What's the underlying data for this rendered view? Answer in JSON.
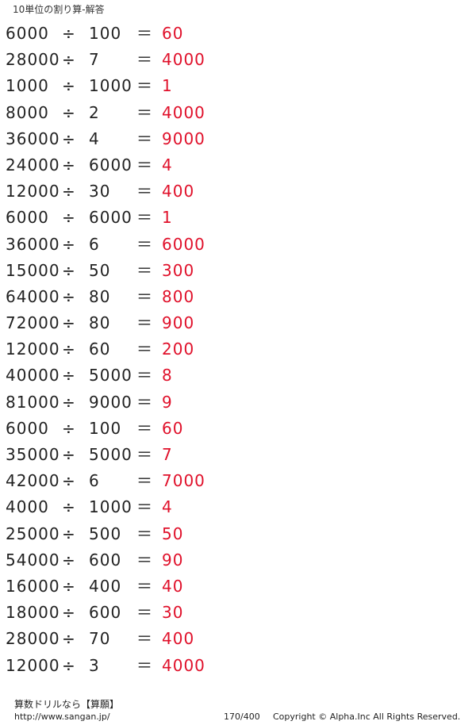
{
  "header": {
    "title": "10単位の割り算-解答"
  },
  "operator_symbol": "÷",
  "equals_symbol": "＝",
  "colors": {
    "answer": "#e0102a",
    "text": "#222222"
  },
  "problems": [
    {
      "dividend": "6000",
      "divisor": "100",
      "answer": "60"
    },
    {
      "dividend": "28000",
      "divisor": "7",
      "answer": "4000"
    },
    {
      "dividend": "1000",
      "divisor": "1000",
      "answer": "1"
    },
    {
      "dividend": "8000",
      "divisor": "2",
      "answer": "4000"
    },
    {
      "dividend": "36000",
      "divisor": "4",
      "answer": "9000"
    },
    {
      "dividend": "24000",
      "divisor": "6000",
      "answer": "4"
    },
    {
      "dividend": "12000",
      "divisor": "30",
      "answer": "400"
    },
    {
      "dividend": "6000",
      "divisor": "6000",
      "answer": "1"
    },
    {
      "dividend": "36000",
      "divisor": "6",
      "answer": "6000"
    },
    {
      "dividend": "15000",
      "divisor": "50",
      "answer": "300"
    },
    {
      "dividend": "64000",
      "divisor": "80",
      "answer": "800"
    },
    {
      "dividend": "72000",
      "divisor": "80",
      "answer": "900"
    },
    {
      "dividend": "12000",
      "divisor": "60",
      "answer": "200"
    },
    {
      "dividend": "40000",
      "divisor": "5000",
      "answer": "8"
    },
    {
      "dividend": "81000",
      "divisor": "9000",
      "answer": "9"
    },
    {
      "dividend": "6000",
      "divisor": "100",
      "answer": "60"
    },
    {
      "dividend": "35000",
      "divisor": "5000",
      "answer": "7"
    },
    {
      "dividend": "42000",
      "divisor": "6",
      "answer": "7000"
    },
    {
      "dividend": "4000",
      "divisor": "1000",
      "answer": "4"
    },
    {
      "dividend": "25000",
      "divisor": "500",
      "answer": "50"
    },
    {
      "dividend": "54000",
      "divisor": "600",
      "answer": "90"
    },
    {
      "dividend": "16000",
      "divisor": "400",
      "answer": "40"
    },
    {
      "dividend": "18000",
      "divisor": "600",
      "answer": "30"
    },
    {
      "dividend": "28000",
      "divisor": "70",
      "answer": "400"
    },
    {
      "dividend": "12000",
      "divisor": "3",
      "answer": "4000"
    }
  ],
  "footer": {
    "brand": "算数ドリルなら【算願】",
    "url": "http://www.sangan.jp/",
    "page": "170/400",
    "copyright": "Copyright © Alpha.Inc All Rights Reserved."
  }
}
